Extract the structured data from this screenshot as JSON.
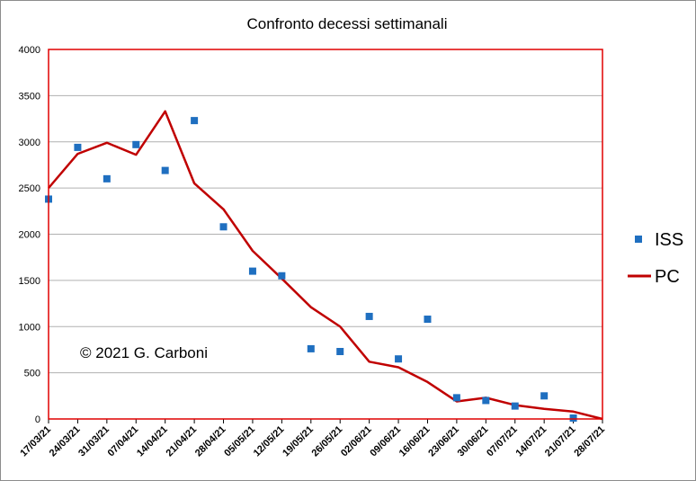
{
  "chart_data": {
    "type": "line",
    "title": "Confronto decessi settimanali",
    "xlabel": "",
    "ylabel": "",
    "ylim": [
      0,
      4000
    ],
    "yticks": [
      0,
      500,
      1000,
      1500,
      2000,
      2500,
      3000,
      3500,
      4000
    ],
    "grid": true,
    "legend_position": "right",
    "categories": [
      "17/03/21",
      "24/03/21",
      "31/03/21",
      "07/04/21",
      "14/04/21",
      "21/04/21",
      "28/04/21",
      "05/05/21",
      "12/05/21",
      "19/05/21",
      "26/05/21",
      "02/06/21",
      "09/06/21",
      "16/06/21",
      "23/06/21",
      "30/06/21",
      "07/07/21",
      "14/07/21",
      "21/07/21",
      "28/07/21"
    ],
    "series": [
      {
        "name": "ISS",
        "kind": "scatter",
        "marker": "square",
        "color": "#1f6fc0",
        "values": [
          2380,
          2940,
          2600,
          2970,
          2690,
          3230,
          2080,
          1600,
          1550,
          760,
          730,
          1110,
          650,
          1080,
          230,
          200,
          140,
          250,
          10,
          null
        ]
      },
      {
        "name": "PC",
        "kind": "line",
        "color": "#c00000",
        "values": [
          2500,
          2870,
          2990,
          2860,
          3330,
          2550,
          2270,
          1820,
          1520,
          1210,
          1000,
          620,
          560,
          400,
          190,
          230,
          150,
          110,
          80,
          0
        ]
      }
    ],
    "annotations": [
      "© 2021 G. Carboni"
    ],
    "plot_border_color": "#e00000",
    "grid_color": "#b0b0b0"
  }
}
